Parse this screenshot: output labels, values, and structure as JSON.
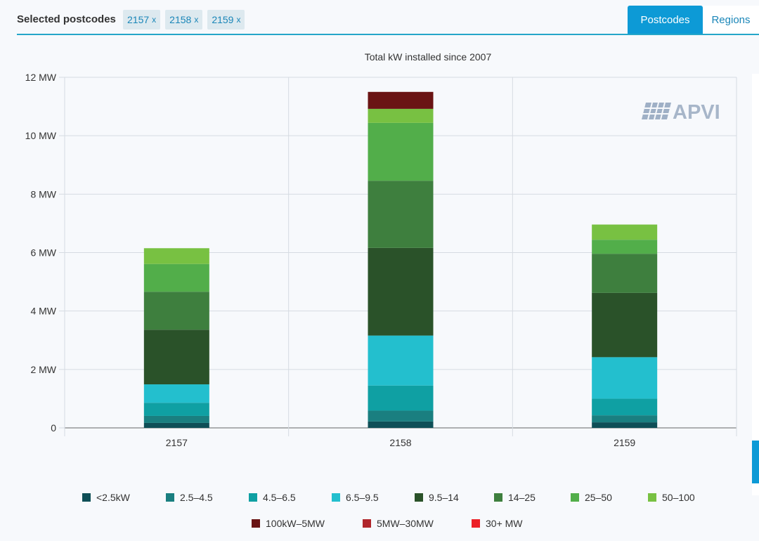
{
  "header": {
    "selected_label": "Selected postcodes",
    "chips": [
      {
        "label": "2157",
        "remove": "x"
      },
      {
        "label": "2158",
        "remove": "x"
      },
      {
        "label": "2159",
        "remove": "x"
      }
    ],
    "tabs": [
      {
        "label": "Postcodes",
        "active": true
      },
      {
        "label": "Regions",
        "active": false
      }
    ]
  },
  "logo": {
    "text": "APVI"
  },
  "chart_data": {
    "type": "bar",
    "stacked": true,
    "title": "Total kW installed since 2007",
    "xlabel": "",
    "ylabel": "",
    "categories": [
      "2157",
      "2158",
      "2159"
    ],
    "ylim": [
      0,
      12
    ],
    "yticks": [
      0,
      2,
      4,
      6,
      8,
      10,
      12
    ],
    "ytick_labels": [
      "0",
      "2 MW",
      "4 MW",
      "6 MW",
      "8 MW",
      "10 MW",
      "12 MW"
    ],
    "grid": true,
    "legend_position": "bottom",
    "series": [
      {
        "name": "<2.5kW",
        "color": "#0f4f57",
        "values": [
          0.17,
          0.22,
          0.19
        ]
      },
      {
        "name": "2.5–4.5",
        "color": "#1a7f80",
        "values": [
          0.24,
          0.37,
          0.24
        ]
      },
      {
        "name": "4.5–6.5",
        "color": "#0fa0a3",
        "values": [
          0.45,
          0.86,
          0.57
        ]
      },
      {
        "name": "6.5–9.5",
        "color": "#23bfce",
        "values": [
          0.63,
          1.71,
          1.42
        ]
      },
      {
        "name": "9.5–14",
        "color": "#2a5229",
        "values": [
          1.87,
          3.0,
          2.2
        ]
      },
      {
        "name": "14–25",
        "color": "#3e7f3e",
        "values": [
          1.3,
          2.3,
          1.34
        ]
      },
      {
        "name": "25–50",
        "color": "#52ae4a",
        "values": [
          0.95,
          1.98,
          0.48
        ]
      },
      {
        "name": "50–100",
        "color": "#78c142",
        "values": [
          0.54,
          0.48,
          0.52
        ]
      },
      {
        "name": "100kW–5MW",
        "color": "#6a1414",
        "values": [
          0,
          0.58,
          0
        ]
      },
      {
        "name": "5MW–30MW",
        "color": "#b0262b",
        "values": [
          0,
          0,
          0
        ]
      },
      {
        "name": "30+ MW",
        "color": "#ec2027",
        "values": [
          0,
          0,
          0
        ]
      }
    ]
  }
}
